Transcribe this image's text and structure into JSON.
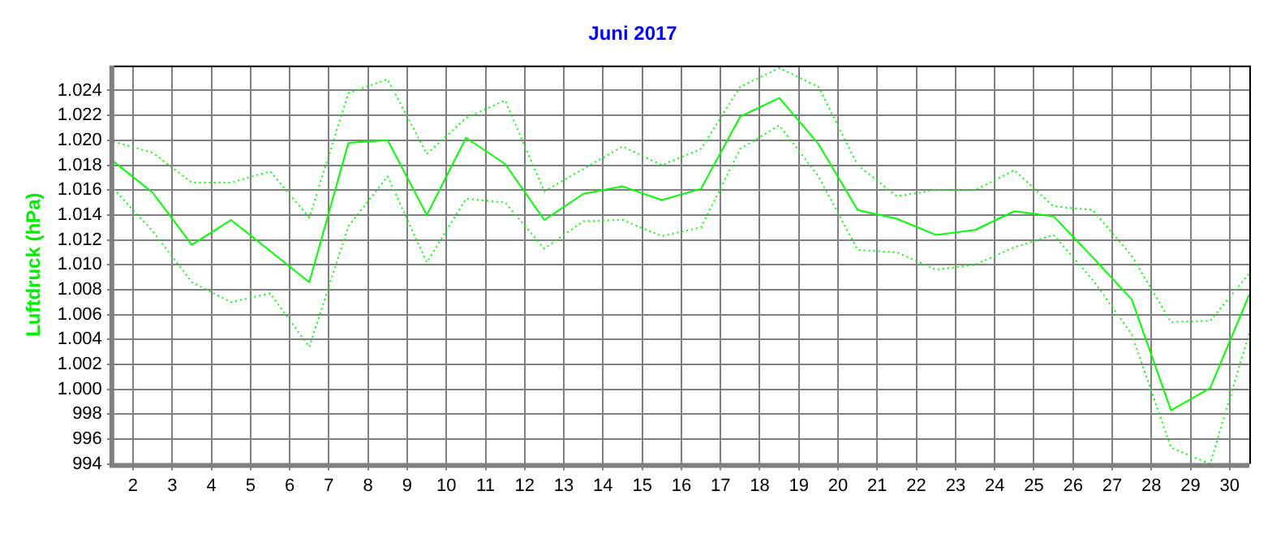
{
  "chart_data": {
    "type": "line",
    "title": "Juni 2017",
    "ylabel": "Luftdruck (hPa)",
    "x": [
      1.5,
      2.5,
      3.5,
      4.5,
      5.5,
      6.5,
      7.5,
      8.5,
      9.5,
      10.5,
      11.5,
      12.5,
      13.5,
      14.5,
      15.5,
      16.5,
      17.5,
      18.5,
      19.5,
      20.5,
      21.5,
      22.5,
      23.5,
      24.5,
      25.5,
      26.5,
      27.5,
      28.5,
      29.5,
      30.5
    ],
    "series": [
      {
        "color": "#00ff00",
        "line_style": "solid",
        "values": [
          1018.3,
          1015.8,
          1011.6,
          1013.6,
          1011.1,
          1008.6,
          1019.8,
          1020.0,
          1014.0,
          1020.2,
          1018.1,
          1013.6,
          1015.7,
          1016.3,
          1015.2,
          1016.1,
          1021.9,
          1023.4,
          1019.7,
          1014.4,
          1013.7,
          1012.4,
          1012.8,
          1014.3,
          1013.9,
          1010.6,
          1007.2,
          998.3,
          1000.1,
          1007.6
        ]
      },
      {
        "color": "#00ff00",
        "line_style": "dotted",
        "values": [
          1019.9,
          1019.0,
          1016.6,
          1016.6,
          1017.5,
          1013.8,
          1023.8,
          1024.9,
          1018.9,
          1021.8,
          1023.2,
          1015.9,
          1017.7,
          1019.5,
          1018.0,
          1019.3,
          1024.3,
          1025.8,
          1024.3,
          1018.0,
          1015.5,
          1016.0,
          1016.0,
          1017.6,
          1014.7,
          1014.4,
          1010.7,
          1005.4,
          1005.5,
          1009.3
        ]
      },
      {
        "color": "#00ff00",
        "line_style": "dotted",
        "values": [
          1016.1,
          1012.7,
          1008.6,
          1007.0,
          1007.7,
          1003.4,
          1013.1,
          1017.1,
          1010.2,
          1015.3,
          1015.0,
          1011.3,
          1013.5,
          1013.6,
          1012.3,
          1013.0,
          1019.3,
          1021.2,
          1017.1,
          1011.2,
          1011.0,
          1009.6,
          1010.0,
          1011.4,
          1012.4,
          1008.8,
          1004.4,
          995.3,
          994.0,
          1004.5
        ]
      }
    ],
    "xlim": [
      1.5,
      30.5
    ],
    "xticks": [
      2,
      3,
      4,
      5,
      6,
      7,
      8,
      9,
      10,
      11,
      12,
      13,
      14,
      15,
      16,
      17,
      18,
      19,
      20,
      21,
      22,
      23,
      24,
      25,
      26,
      27,
      28,
      29,
      30
    ],
    "ylim": [
      994,
      1026
    ],
    "yticks": [
      994,
      996,
      998,
      {
        "value": 1000,
        "label": "1.000"
      },
      {
        "value": 1002,
        "label": "1.002"
      },
      {
        "value": 1004,
        "label": "1.004"
      },
      {
        "value": 1006,
        "label": "1.006"
      },
      {
        "value": 1008,
        "label": "1.008"
      },
      {
        "value": 1010,
        "label": "1.010"
      },
      {
        "value": 1012,
        "label": "1.012"
      },
      {
        "value": 1014,
        "label": "1.014"
      },
      {
        "value": 1016,
        "label": "1.016"
      },
      {
        "value": 1018,
        "label": "1.018"
      },
      {
        "value": 1020,
        "label": "1.020"
      },
      {
        "value": 1022,
        "label": "1.022"
      },
      {
        "value": 1024,
        "label": "1.024"
      }
    ],
    "grid": true,
    "legend": false,
    "marker": "none"
  }
}
